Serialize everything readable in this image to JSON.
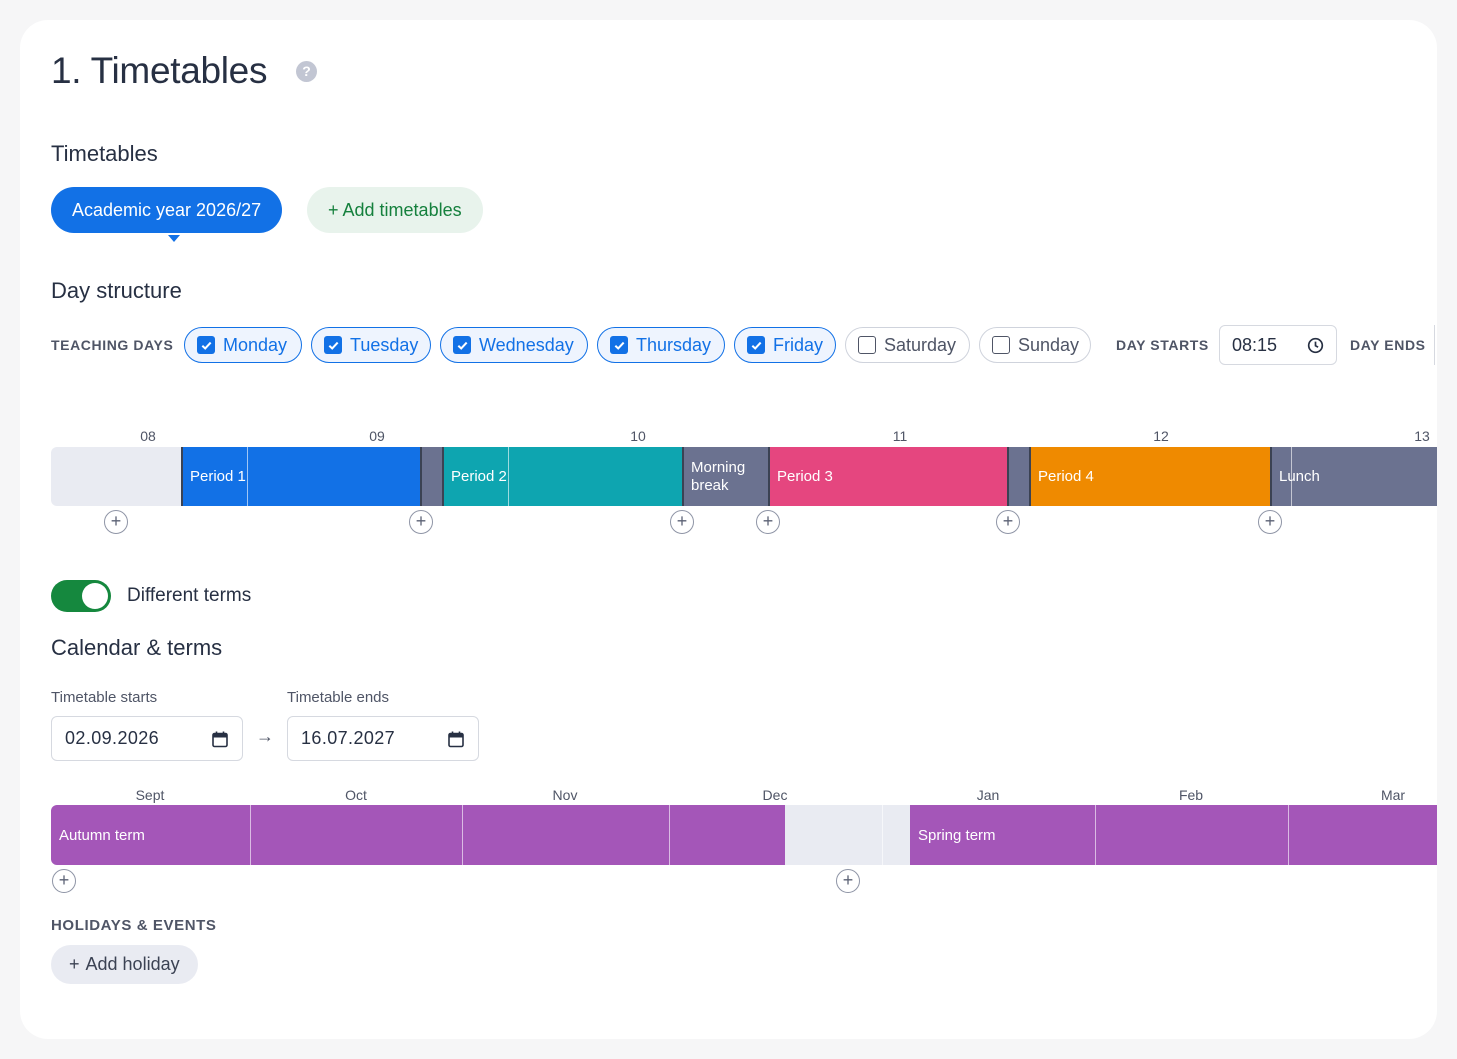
{
  "page": {
    "title": "1. Timetables"
  },
  "timetables": {
    "heading": "Timetables",
    "active_tab": "Academic year 2026/27",
    "add_button": "+ Add timetables"
  },
  "day_structure": {
    "heading": "Day structure",
    "teaching_days_label": "TEACHING DAYS",
    "days": [
      {
        "label": "Monday",
        "checked": true
      },
      {
        "label": "Tuesday",
        "checked": true
      },
      {
        "label": "Wednesday",
        "checked": true
      },
      {
        "label": "Thursday",
        "checked": true
      },
      {
        "label": "Friday",
        "checked": true
      },
      {
        "label": "Saturday",
        "checked": false
      },
      {
        "label": "Sunday",
        "checked": false
      }
    ],
    "day_starts_label": "DAY STARTS",
    "day_starts_value": "08:15",
    "day_ends_label": "DAY ENDS",
    "hours": [
      "08",
      "09",
      "10",
      "11",
      "12",
      "13"
    ],
    "segments": [
      {
        "label": "Period 1",
        "color": "#1271e6"
      },
      {
        "label": "Period 2",
        "color": "#0ea5b0"
      },
      {
        "label": "Morning break",
        "color": "#6b7290"
      },
      {
        "label": "Period 3",
        "color": "#e5467f"
      },
      {
        "label": "Period 4",
        "color": "#ef8a00"
      },
      {
        "label": "Lunch",
        "color": "#6b7290"
      }
    ]
  },
  "terms": {
    "toggle_label": "Different terms",
    "toggle_on": true,
    "heading": "Calendar & terms",
    "starts_label": "Timetable starts",
    "starts_value": "02.09.2026",
    "ends_label": "Timetable ends",
    "ends_value": "16.07.2027",
    "arrow": "→",
    "months": [
      "Sept",
      "Oct",
      "Nov",
      "Dec",
      "Jan",
      "Feb",
      "Mar"
    ],
    "term_list": [
      {
        "label": "Autumn term",
        "color": "#a456b8"
      },
      {
        "label": "Spring term",
        "color": "#a456b8"
      }
    ]
  },
  "holidays": {
    "heading": "HOLIDAYS & EVENTS",
    "add_button": "Add holiday"
  },
  "colors": {
    "primary": "#1271e6",
    "success": "#15883e",
    "break": "#6b7290",
    "empty": "#e9ebf2"
  }
}
